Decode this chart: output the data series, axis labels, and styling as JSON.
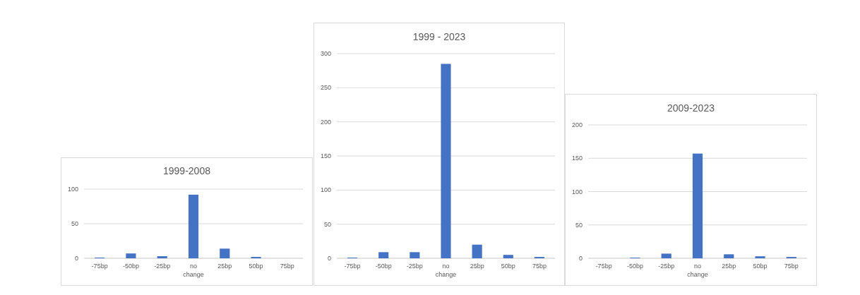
{
  "chart_data": [
    {
      "type": "bar",
      "title": "1999-2008",
      "categories": [
        "-75bp",
        "-50bp",
        "-25bp",
        "no change",
        "25bp",
        "50bp",
        "75bp"
      ],
      "values": [
        1,
        7,
        3,
        92,
        14,
        2,
        0
      ],
      "color": "#4472c4",
      "ylim": [
        0,
        100
      ],
      "yticks": [
        0,
        50,
        100
      ],
      "grid": "y"
    },
    {
      "type": "bar",
      "title": "1999 - 2023",
      "categories": [
        "-75bp",
        "-50bp",
        "-25bp",
        "no change",
        "25bp",
        "50bp",
        "75bp"
      ],
      "values": [
        1,
        9,
        9,
        285,
        20,
        5,
        2
      ],
      "color": "#4472c4",
      "ylim": [
        0,
        300
      ],
      "yticks": [
        0,
        50,
        100,
        150,
        200,
        250,
        300
      ],
      "grid": "y"
    },
    {
      "type": "bar",
      "title": "2009-2023",
      "categories": [
        "-75bp",
        "-50bp",
        "-25bp",
        "no change",
        "25bp",
        "50bp",
        "75bp"
      ],
      "values": [
        0,
        1,
        7,
        157,
        6,
        3,
        2
      ],
      "color": "#4472c4",
      "ylim": [
        0,
        200
      ],
      "yticks": [
        0,
        50,
        100,
        150,
        200
      ],
      "grid": "y"
    }
  ]
}
